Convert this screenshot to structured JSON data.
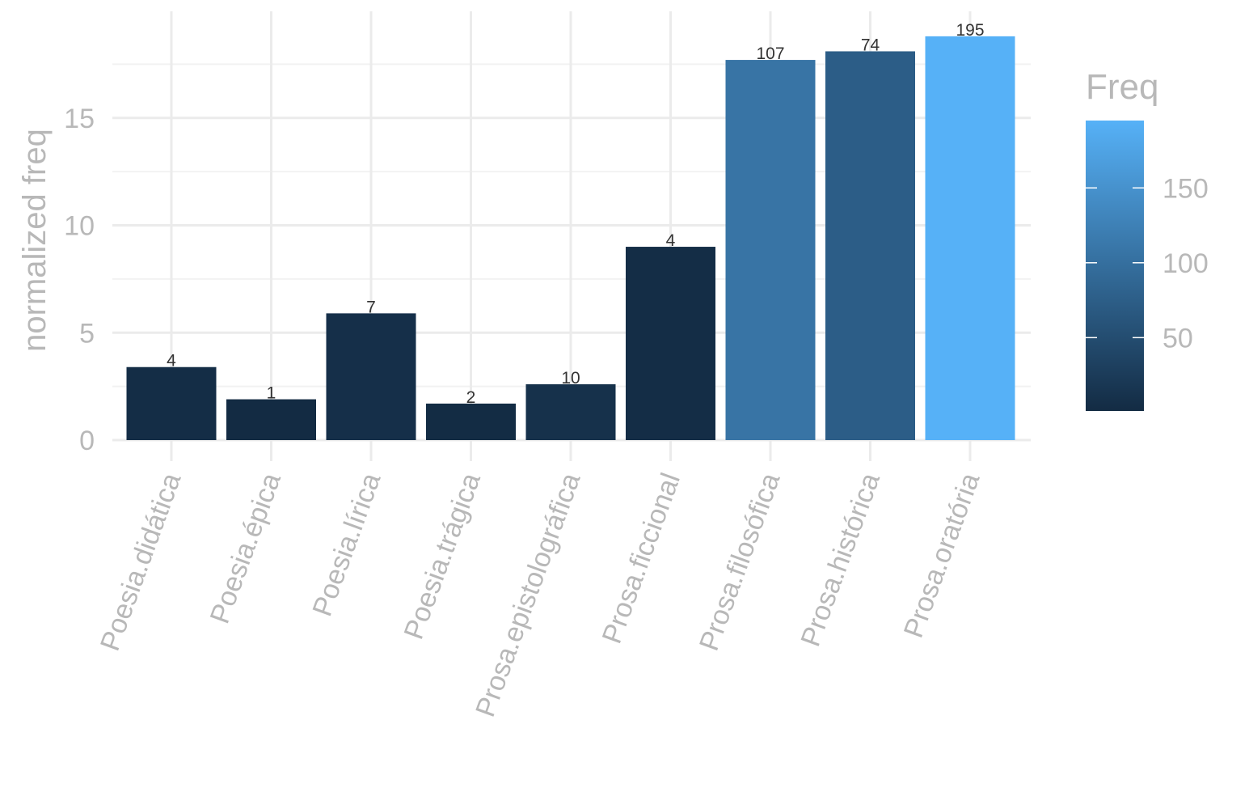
{
  "chart_data": {
    "type": "bar",
    "categories": [
      "Poesia.didática",
      "Poesia.épica",
      "Poesia.lírica",
      "Poesia.trágica",
      "Prosa.epistolográfica",
      "Prosa.ficcional",
      "Prosa.filosófica",
      "Prosa.histórica",
      "Prosa.oratória"
    ],
    "values": [
      3.4,
      1.9,
      5.9,
      1.7,
      2.6,
      9.0,
      17.7,
      18.1,
      18.8
    ],
    "freq": [
      4,
      1,
      7,
      2,
      10,
      4,
      107,
      74,
      195
    ],
    "ylabel": "normalized freq",
    "xlabel": "",
    "ylim": [
      0,
      19
    ],
    "yticks": [
      0,
      5,
      10,
      15
    ],
    "grid": true,
    "legend": {
      "title": "Freq",
      "position": "right",
      "ticks": [
        50,
        100,
        150
      ],
      "range": [
        1,
        195
      ],
      "color_low": "#132B43",
      "color_high": "#56B1F7"
    }
  }
}
